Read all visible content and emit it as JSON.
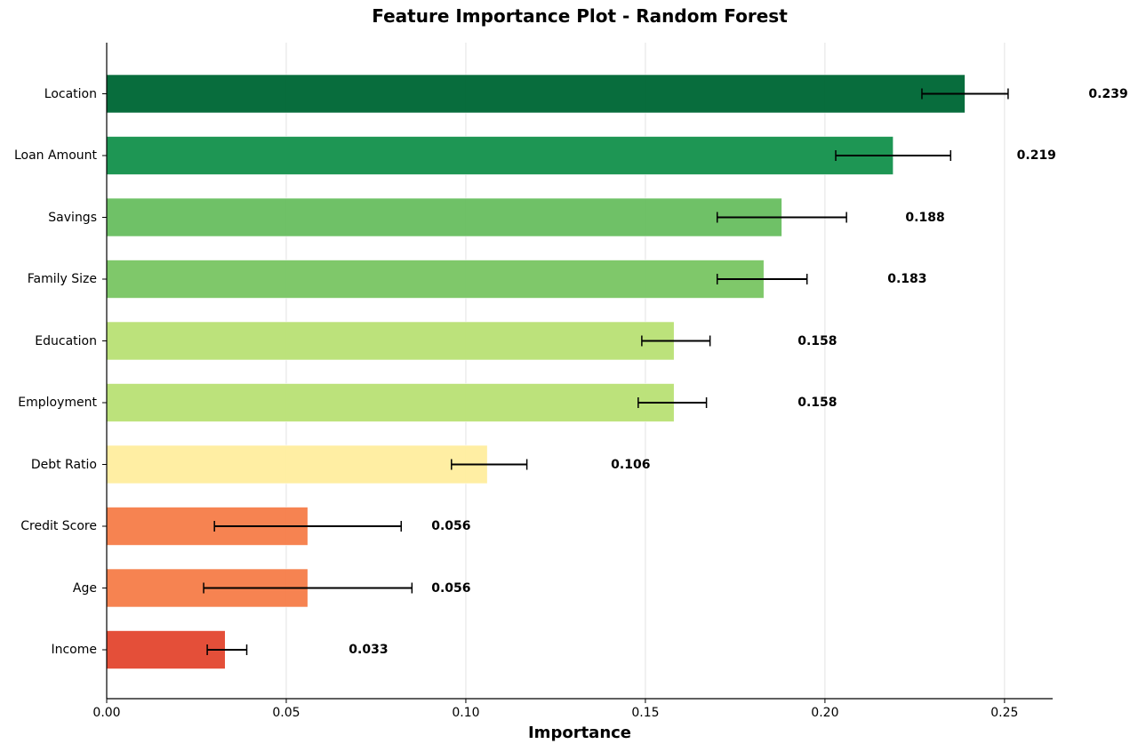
{
  "chart_data": {
    "type": "bar",
    "orientation": "horizontal",
    "title": "Feature Importance Plot - Random Forest",
    "xlabel": "Importance",
    "ylabel": "",
    "xlim": [
      0,
      0.2634
    ],
    "xticks": [
      0.0,
      0.05,
      0.1,
      0.15,
      0.2,
      0.25
    ],
    "xtick_labels": [
      "0.00",
      "0.05",
      "0.10",
      "0.15",
      "0.20",
      "0.25"
    ],
    "grid": "vertical, light gray",
    "legend": "none",
    "categories": [
      "Location",
      "Loan Amount",
      "Savings",
      "Family Size",
      "Education",
      "Employment",
      "Debt Ratio",
      "Credit Score",
      "Age",
      "Income"
    ],
    "values": [
      0.239,
      0.219,
      0.188,
      0.183,
      0.158,
      0.158,
      0.106,
      0.056,
      0.056,
      0.033
    ],
    "value_labels": [
      "0.239",
      "0.219",
      "0.188",
      "0.183",
      "0.158",
      "0.158",
      "0.106",
      "0.056",
      "0.056",
      "0.033"
    ],
    "error_low": [
      0.227,
      0.203,
      0.17,
      0.17,
      0.149,
      0.148,
      0.096,
      0.03,
      0.027,
      0.028
    ],
    "error_high": [
      0.251,
      0.235,
      0.206,
      0.195,
      0.168,
      0.167,
      0.117,
      0.082,
      0.085,
      0.039
    ],
    "colors": [
      "#006837",
      "#17934e",
      "#6abf62",
      "#7bc665",
      "#bae177",
      "#bae177",
      "#ffeda0",
      "#f67f4b",
      "#f67f4b",
      "#e34933"
    ]
  }
}
